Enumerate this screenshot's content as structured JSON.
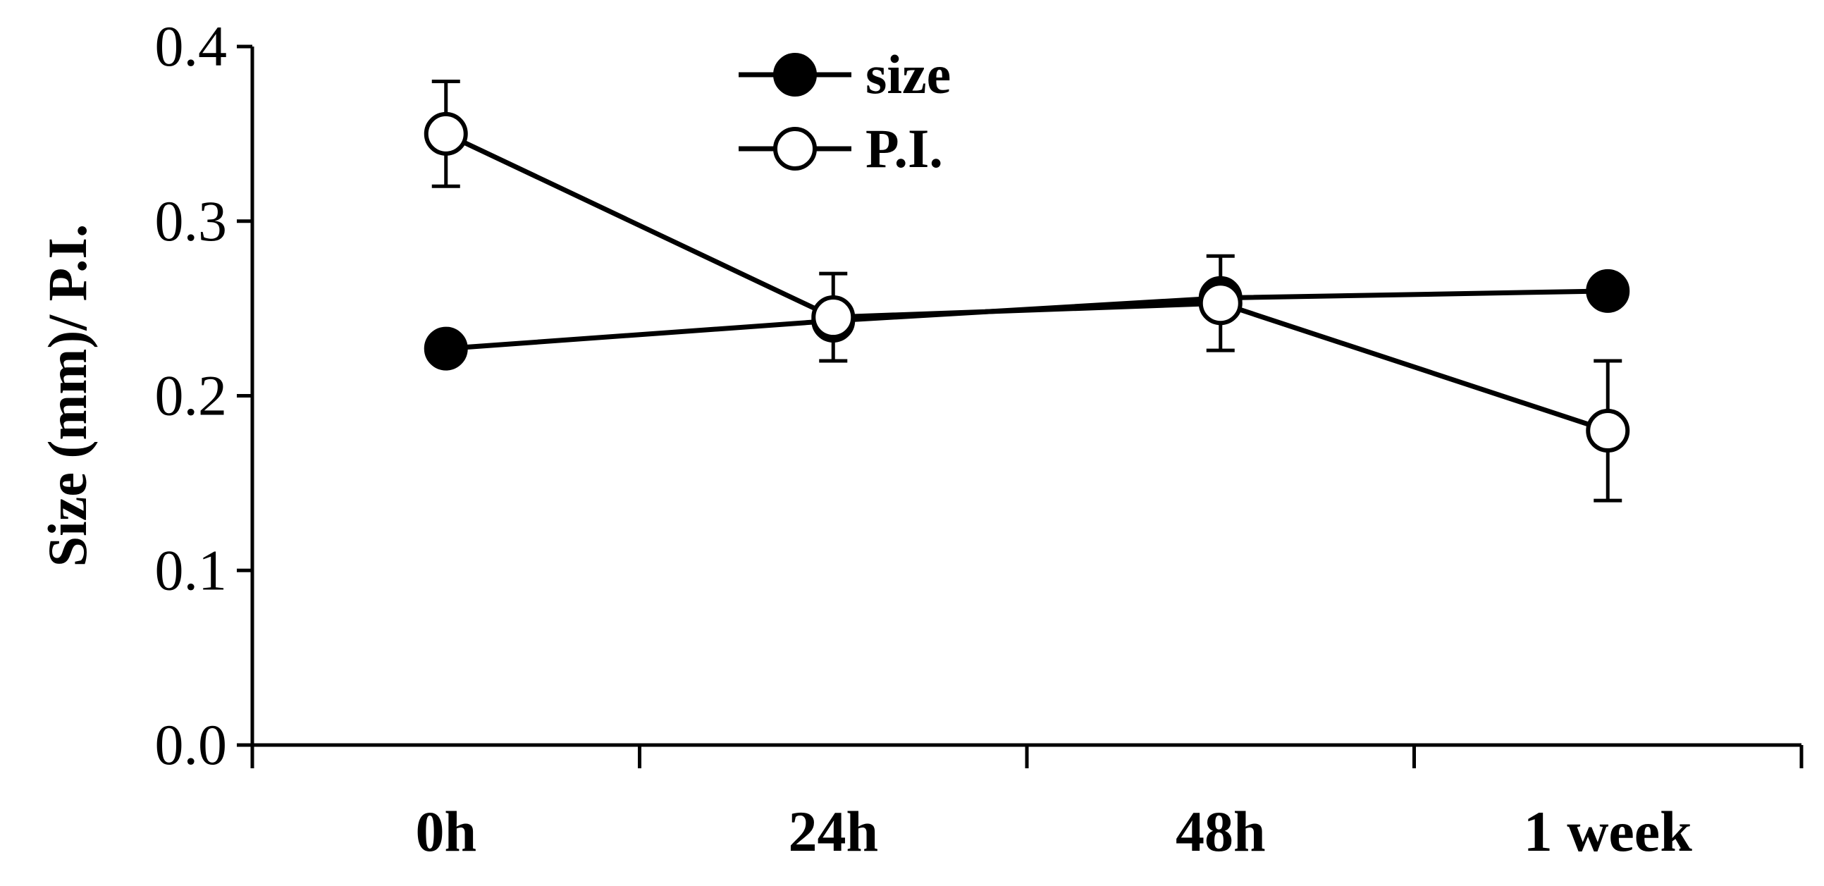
{
  "chart_data": {
    "type": "line",
    "title": "",
    "xlabel": "",
    "ylabel": "Size (mm)/ P.I.",
    "categories": [
      "0h",
      "24h",
      "48h",
      "1 week"
    ],
    "ylim": [
      0,
      0.4
    ],
    "yticks": [
      "0.0",
      "0.1",
      "0.2",
      "0.3",
      "0.4"
    ],
    "grid": false,
    "legend_position": "top-center",
    "series": [
      {
        "name": "size",
        "marker": "filled-circle",
        "values": [
          0.227,
          0.243,
          0.256,
          0.26
        ],
        "error": null
      },
      {
        "name": "P.I.",
        "marker": "open-circle",
        "values": [
          0.35,
          0.245,
          0.253,
          0.18
        ],
        "error": [
          0.03,
          0.025,
          0.027,
          0.04
        ]
      }
    ],
    "colors": {
      "line": "#000000",
      "filled_marker": "#000000",
      "open_marker_fill": "#ffffff"
    }
  }
}
